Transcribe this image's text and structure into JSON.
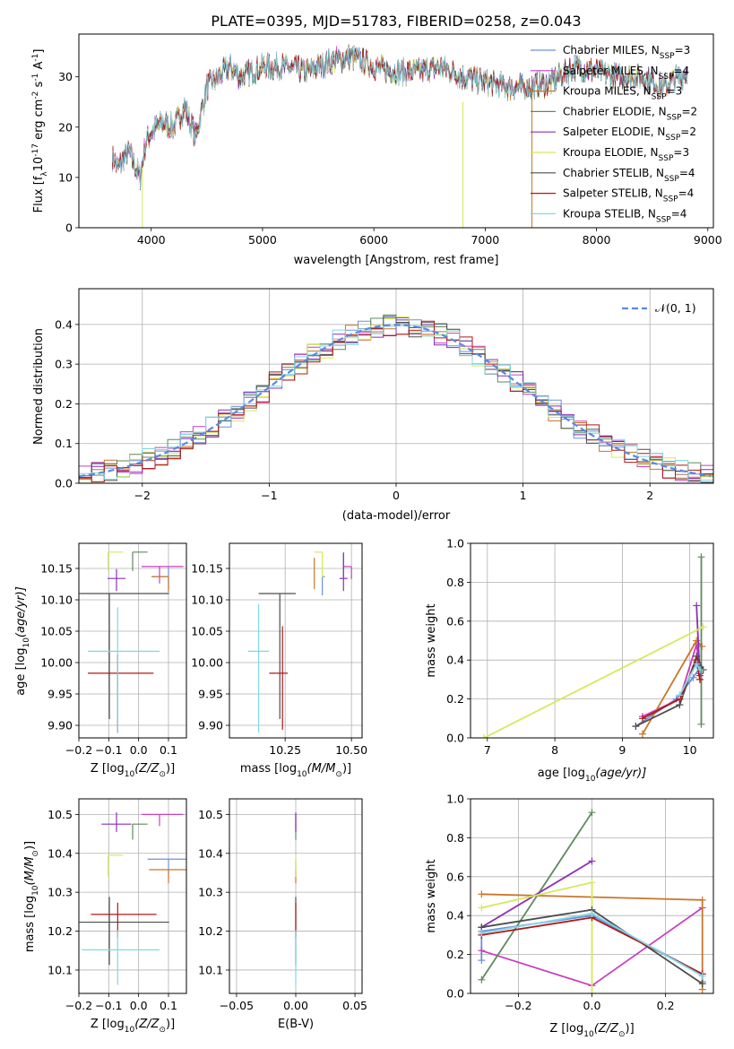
{
  "figure": {
    "title": "PLATE=0395, MJD=51783, FIBERID=0258, z=0.043"
  },
  "series_styles": [
    {
      "name": "Chabrier MILES",
      "nssp": "3",
      "color": "#6f8fdc"
    },
    {
      "name": "Salpeter MILES",
      "nssp": "4",
      "color": "#c73fc0"
    },
    {
      "name": "Kroupa MILES",
      "nssp": "3",
      "color": "#c8762b"
    },
    {
      "name": "Chabrier ELODIE",
      "nssp": "2",
      "color": "#5f8a5f"
    },
    {
      "name": "Salpeter ELODIE",
      "nssp": "2",
      "color": "#8b2fb8"
    },
    {
      "name": "Kroupa ELODIE",
      "nssp": "3",
      "color": "#d7e85a"
    },
    {
      "name": "Chabrier STELIB",
      "nssp": "4",
      "color": "#4d4d4d"
    },
    {
      "name": "Salpeter STELIB",
      "nssp": "4",
      "color": "#b01818"
    },
    {
      "name": "Kroupa STELIB",
      "nssp": "4",
      "color": "#7fd8e6"
    }
  ],
  "chart_data": [
    {
      "type": "line",
      "id": "spectrum",
      "title": "PLATE=0395, MJD=51783, FIBERID=0258, z=0.043",
      "xlabel": "wavelength [Angstrom, rest frame]",
      "ylabel_main": "Flux [f",
      "ylabel_sub1": "λ",
      "ylabel_mid": "10",
      "ylabel_sup1": "-17",
      "ylabel_mid2": " erg cm",
      "ylabel_sup2": "-2",
      "ylabel_mid3": " s",
      "ylabel_sup3": "-1",
      "ylabel_mid4": " A",
      "ylabel_sup4": "-1",
      "ylabel_end": "]",
      "xlim": [
        3350,
        9050
      ],
      "ylim": [
        0,
        38.5
      ],
      "xticks": [
        "4000",
        "5000",
        "6000",
        "7000",
        "8000",
        "9000"
      ],
      "yticks": [
        "0",
        "10",
        "20",
        "30"
      ],
      "grid": false,
      "legend": "top-right",
      "x_range_data": [
        3650,
        8820
      ],
      "approx_envelope": {
        "x": [
          3650,
          3700,
          3800,
          3900,
          3950,
          4000,
          4100,
          4200,
          4300,
          4400,
          4500,
          4600,
          4700,
          4800,
          4900,
          5000,
          5200,
          5400,
          5600,
          5800,
          6000,
          6200,
          6400,
          6600,
          6800,
          7000,
          7200,
          7400,
          7600,
          7800,
          8000,
          8200,
          8400,
          8600,
          8820
        ],
        "y": [
          14,
          12,
          15,
          10,
          17,
          19,
          21,
          20,
          24,
          18,
          28,
          30,
          32,
          30,
          31,
          32,
          32,
          31,
          33,
          34,
          32,
          31,
          31,
          32,
          30,
          29,
          28,
          28,
          29,
          32,
          31,
          30,
          30,
          28,
          31
        ]
      }
    },
    {
      "type": "line",
      "id": "residual_histogram",
      "xlabel": "(data-model)/error",
      "ylabel": "Normed distribution",
      "xlim": [
        -2.5,
        2.5
      ],
      "ylim": [
        0,
        0.49
      ],
      "xticks": [
        "−2",
        "−1",
        "0",
        "1",
        "2"
      ],
      "yticks": [
        "0.0",
        "0.1",
        "0.2",
        "0.3",
        "0.4"
      ],
      "grid": true,
      "legend": "top-right",
      "reference_curve_label": "𝒩(0, 1)",
      "bin_width": 0.1
    },
    {
      "type": "scatter",
      "id": "age_vs_Z",
      "xlabel_main": "Z [log",
      "xlabel_sub": "10",
      "xlabel_end": "(Z/Z",
      "xlabel_sun": "⊙",
      "xlabel_close": ")]",
      "ylabel_main": "age  [log",
      "ylabel_sub": "10",
      "ylabel_end": "(age/yr)]",
      "xlim": [
        -0.2,
        0.16
      ],
      "ylim": [
        9.88,
        10.19
      ],
      "xticks": [
        "−0.2",
        "−0.1",
        "0.0",
        "0.1"
      ],
      "yticks": [
        "9.90",
        "9.95",
        "10.00",
        "10.05",
        "10.10",
        "10.15"
      ],
      "grid": true,
      "points": [
        {
          "x": 0.1,
          "y": 10.137,
          "xerr": [
            0.057,
            0.0
          ],
          "yerr": [
            0.02,
            0.015
          ],
          "series": 0
        },
        {
          "x": 0.07,
          "y": 10.153,
          "xerr": [
            0.06,
            0.08
          ],
          "yerr": [
            0.027,
            0.0
          ],
          "series": 1
        },
        {
          "x": 0.1,
          "y": 10.137,
          "xerr": [
            0.057,
            0.0
          ],
          "yerr": [
            0.025,
            0.0
          ],
          "series": 2
        },
        {
          "x": -0.02,
          "y": 10.176,
          "xerr": [
            0.0,
            0.05
          ],
          "yerr": [
            0.03,
            0.0
          ],
          "series": 3
        },
        {
          "x": -0.074,
          "y": 10.134,
          "xerr": [
            0.03,
            0.03
          ],
          "yerr": [
            0.02,
            0.015
          ],
          "series": 4
        },
        {
          "x": -0.102,
          "y": 10.176,
          "xerr": [
            0.0,
            0.05
          ],
          "yerr": [
            0.03,
            0.0
          ],
          "series": 5
        },
        {
          "x": -0.098,
          "y": 10.11,
          "xerr": [
            0.1,
            0.2
          ],
          "yerr": [
            0.2,
            0.0
          ],
          "series": 6
        },
        {
          "x": -0.07,
          "y": 9.983,
          "xerr": [
            0.1,
            0.12
          ],
          "yerr": [
            0.095,
            0.03
          ],
          "series": 7
        },
        {
          "x": -0.07,
          "y": 10.018,
          "xerr": [
            0.1,
            0.14
          ],
          "yerr": [
            0.13,
            0.07
          ],
          "series": 8
        }
      ]
    },
    {
      "type": "scatter",
      "id": "age_vs_mass",
      "xlabel_main": "mass [log",
      "xlabel_sub": "10",
      "xlabel_end": "(M/M",
      "xlabel_sun": "⊙",
      "xlabel_close": ")]",
      "xlim": [
        10.04,
        10.54
      ],
      "ylim": [
        9.88,
        10.19
      ],
      "xticks": [
        "10.25",
        "10.50"
      ],
      "yticks": [
        "9.90",
        "9.95",
        "10.00",
        "10.05",
        "10.10",
        "10.15"
      ],
      "grid": true,
      "points": [
        {
          "x": 10.39,
          "y": 10.137,
          "xerr": [
            0.0,
            0.01
          ],
          "yerr": [
            0.03,
            0.0
          ],
          "series": 0
        },
        {
          "x": 10.5,
          "y": 10.153,
          "xerr": [
            0.03,
            0.0
          ],
          "yerr": [
            0.02,
            0.0
          ],
          "series": 1
        },
        {
          "x": 10.36,
          "y": 10.137,
          "xerr": [
            0.0,
            0.0
          ],
          "yerr": [
            0.02,
            0.03
          ],
          "series": 2
        },
        {
          "x": 10.47,
          "y": 10.176,
          "xerr": [
            0.0,
            0.0
          ],
          "yerr": [
            0.04,
            0.0
          ],
          "series": 3
        },
        {
          "x": 10.47,
          "y": 10.134,
          "xerr": [
            0.015,
            0.015
          ],
          "yerr": [
            0.02,
            0.04
          ],
          "series": 4
        },
        {
          "x": 10.39,
          "y": 10.176,
          "xerr": [
            0.03,
            0.0
          ],
          "yerr": [
            0.04,
            0.0
          ],
          "series": 5
        },
        {
          "x": 10.23,
          "y": 10.11,
          "xerr": [
            0.08,
            0.06
          ],
          "yerr": [
            0.2,
            0.0
          ],
          "series": 6
        },
        {
          "x": 10.24,
          "y": 9.983,
          "xerr": [
            0.05,
            0.02
          ],
          "yerr": [
            0.09,
            0.075
          ],
          "series": 7
        },
        {
          "x": 10.15,
          "y": 10.018,
          "xerr": [
            0.04,
            0.04
          ],
          "yerr": [
            0.13,
            0.075
          ],
          "series": 8
        }
      ]
    },
    {
      "type": "line",
      "id": "mass_weight_vs_age",
      "xlabel_main": "age  [log",
      "xlabel_sub": "10",
      "xlabel_end": "(age/yr)]",
      "ylabel": "mass weight",
      "xlim": [
        6.75,
        10.35
      ],
      "ylim": [
        0.0,
        1.0
      ],
      "xticks": [
        "7",
        "8",
        "9",
        "10"
      ],
      "yticks": [
        "0.0",
        "0.2",
        "0.4",
        "0.6",
        "0.8",
        "1.0"
      ],
      "grid": true,
      "series": [
        {
          "series": 0,
          "x": [
            9.2,
            9.8,
            10.05,
            10.15
          ],
          "y": [
            0.06,
            0.2,
            0.31,
            0.36
          ]
        },
        {
          "series": 1,
          "x": [
            9.3,
            9.85,
            10.1,
            10.15
          ],
          "y": [
            0.11,
            0.2,
            0.48,
            0.33
          ]
        },
        {
          "series": 2,
          "x": [
            9.3,
            10.1,
            10.18
          ],
          "y": [
            0.02,
            0.5,
            0.47
          ]
        },
        {
          "series": 3,
          "x": [
            10.17,
            10.17
          ],
          "y": [
            0.93,
            0.07
          ]
        },
        {
          "series": 4,
          "x": [
            10.1,
            10.15
          ],
          "y": [
            0.68,
            0.32
          ]
        },
        {
          "series": 5,
          "x": [
            6.95,
            10.2
          ],
          "y": [
            0.0,
            0.57
          ]
        },
        {
          "series": 6,
          "x": [
            9.2,
            9.85,
            10.1,
            10.2
          ],
          "y": [
            0.06,
            0.17,
            0.42,
            0.35
          ]
        },
        {
          "series": 7,
          "x": [
            9.3,
            9.85,
            10.1,
            10.15
          ],
          "y": [
            0.1,
            0.2,
            0.4,
            0.3
          ]
        },
        {
          "series": 8,
          "x": [
            9.85,
            10.1,
            10.15
          ],
          "y": [
            0.22,
            0.38,
            0.35
          ]
        }
      ]
    },
    {
      "type": "scatter",
      "id": "mass_vs_Z",
      "xlabel_main": "Z [log",
      "xlabel_sub": "10",
      "xlabel_end": "(Z/Z",
      "xlabel_sun": "⊙",
      "xlabel_close": ")]",
      "ylabel_main": "mass [log",
      "ylabel_sub": "10",
      "ylabel_end": "(M/M",
      "ylabel_sun": "⊙",
      "ylabel_close": ")]",
      "xlim": [
        -0.2,
        0.16
      ],
      "ylim": [
        10.04,
        10.54
      ],
      "xticks": [
        "−0.2",
        "−0.1",
        "0.0",
        "0.1"
      ],
      "yticks": [
        "10.1",
        "10.2",
        "10.3",
        "10.4",
        "10.5"
      ],
      "grid": true,
      "points": [
        {
          "x": 0.1,
          "y": 10.385,
          "xerr": [
            0.07,
            0.06
          ],
          "yerr": [
            0.04,
            0.0
          ],
          "series": 0
        },
        {
          "x": 0.07,
          "y": 10.5,
          "xerr": [
            0.06,
            0.08
          ],
          "yerr": [
            0.03,
            0.0
          ],
          "series": 1
        },
        {
          "x": 0.1,
          "y": 10.358,
          "xerr": [
            0.065,
            0.06
          ],
          "yerr": [
            0.035,
            0.0
          ],
          "series": 2
        },
        {
          "x": -0.02,
          "y": 10.475,
          "xerr": [
            0.0,
            0.05
          ],
          "yerr": [
            0.04,
            0.0
          ],
          "series": 3
        },
        {
          "x": -0.074,
          "y": 10.475,
          "xerr": [
            0.05,
            0.05
          ],
          "yerr": [
            0.02,
            0.03
          ],
          "series": 4
        },
        {
          "x": -0.102,
          "y": 10.395,
          "xerr": [
            0.0,
            0.05
          ],
          "yerr": [
            0.055,
            0.0
          ],
          "series": 5
        },
        {
          "x": -0.098,
          "y": 10.223,
          "xerr": [
            0.1,
            0.2
          ],
          "yerr": [
            0.11,
            0.065
          ],
          "series": 6
        },
        {
          "x": -0.07,
          "y": 10.243,
          "xerr": [
            0.09,
            0.13
          ],
          "yerr": [
            0.06,
            0.03
          ],
          "series": 7
        },
        {
          "x": -0.07,
          "y": 10.152,
          "xerr": [
            0.12,
            0.14
          ],
          "yerr": [
            0.09,
            0.05
          ],
          "series": 8
        }
      ]
    },
    {
      "type": "scatter",
      "id": "mass_vs_ebv",
      "xlabel": "E(B-V)",
      "xlim": [
        -0.056,
        0.056
      ],
      "ylim": [
        10.04,
        10.54
      ],
      "xticks": [
        "−0.05",
        "0.00",
        "0.05"
      ],
      "yticks": [
        "10.1",
        "10.2",
        "10.3",
        "10.4",
        "10.5"
      ],
      "grid": true,
      "points": [
        {
          "x": 0.0,
          "y": 10.385,
          "yerr": [
            0.04,
            0.0
          ],
          "series": 0
        },
        {
          "x": 0.0,
          "y": 10.5,
          "yerr": [
            0.03,
            0.0
          ],
          "series": 1
        },
        {
          "x": 0.0,
          "y": 10.358,
          "yerr": [
            0.035,
            0.0
          ],
          "series": 2
        },
        {
          "x": 0.0,
          "y": 10.475,
          "yerr": [
            0.04,
            0.0
          ],
          "series": 3
        },
        {
          "x": 0.0,
          "y": 10.475,
          "yerr": [
            0.02,
            0.03
          ],
          "series": 4
        },
        {
          "x": 0.0,
          "y": 10.395,
          "yerr": [
            0.055,
            0.0
          ],
          "series": 5
        },
        {
          "x": 0.0,
          "y": 10.223,
          "yerr": [
            0.11,
            0.065
          ],
          "series": 6
        },
        {
          "x": 0.0,
          "y": 10.243,
          "yerr": [
            0.06,
            0.03
          ],
          "series": 7
        },
        {
          "x": 0.0,
          "y": 10.152,
          "yerr": [
            0.09,
            0.05
          ],
          "series": 8
        }
      ]
    },
    {
      "type": "line",
      "id": "mass_weight_vs_Z",
      "xlabel_main": "Z [log",
      "xlabel_sub": "10",
      "xlabel_end": "(Z/Z",
      "xlabel_sun": "⊙",
      "xlabel_close": ")]",
      "ylabel": "mass weight",
      "xlim": [
        -0.33,
        0.33
      ],
      "ylim": [
        0.0,
        1.0
      ],
      "xticks": [
        "−0.2",
        "0.0",
        "0.2"
      ],
      "yticks": [
        "0.0",
        "0.2",
        "0.4",
        "0.6",
        "0.8",
        "1.0"
      ],
      "grid": true,
      "series": [
        {
          "series": 0,
          "x": [
            -0.3,
            -0.3,
            0.0,
            0.3,
            0.3
          ],
          "y": [
            0.17,
            0.32,
            0.4,
            0.1,
            0.06
          ]
        },
        {
          "series": 1,
          "x": [
            -0.3,
            0.0,
            0.3
          ],
          "y": [
            0.22,
            0.04,
            0.44
          ]
        },
        {
          "series": 2,
          "x": [
            -0.3,
            0.3,
            0.3
          ],
          "y": [
            0.51,
            0.48,
            0.02
          ]
        },
        {
          "series": 3,
          "x": [
            -0.3,
            0.0
          ],
          "y": [
            0.07,
            0.93
          ]
        },
        {
          "series": 4,
          "x": [
            -0.3,
            0.0
          ],
          "y": [
            0.34,
            0.68
          ]
        },
        {
          "series": 5,
          "x": [
            -0.3,
            0.0,
            0.0
          ],
          "y": [
            0.44,
            0.57,
            0.0
          ]
        },
        {
          "series": 6,
          "x": [
            -0.3,
            0.0,
            0.3
          ],
          "y": [
            0.34,
            0.43,
            0.05
          ]
        },
        {
          "series": 7,
          "x": [
            -0.3,
            0.0,
            0.3
          ],
          "y": [
            0.3,
            0.39,
            0.1
          ]
        },
        {
          "series": 8,
          "x": [
            -0.3,
            0.0,
            0.3
          ],
          "y": [
            0.31,
            0.41,
            0.09
          ]
        }
      ]
    }
  ]
}
